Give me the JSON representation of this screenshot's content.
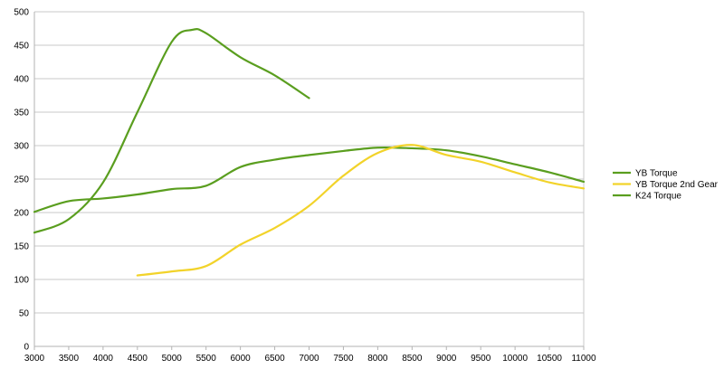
{
  "chart_data": {
    "type": "line",
    "title": "",
    "xlabel": "",
    "ylabel": "",
    "xlim": [
      3000,
      11000
    ],
    "ylim": [
      0,
      500
    ],
    "x_ticks": [
      3000,
      3500,
      4000,
      4500,
      5000,
      5500,
      6000,
      6500,
      7000,
      7500,
      8000,
      8500,
      9000,
      9500,
      10000,
      10500,
      11000
    ],
    "y_ticks": [
      0,
      50,
      100,
      150,
      200,
      250,
      300,
      350,
      400,
      450,
      500
    ],
    "grid": "horizontal",
    "legend_position": "right",
    "series": [
      {
        "name": "YB Torque",
        "color": "#5a9e1f",
        "x": [
          3000,
          3500,
          4000,
          4500,
          5000,
          5500,
          6000,
          6500,
          7000,
          7500,
          8000,
          8500,
          9000,
          9500,
          10000,
          10500,
          11000
        ],
        "y": [
          201,
          217,
          221,
          227,
          235,
          240,
          268,
          279,
          286,
          292,
          297,
          296,
          293,
          284,
          272,
          260,
          246
        ]
      },
      {
        "name": "YB Torque 2nd Gear",
        "color": "#f2d32a",
        "x": [
          4500,
          5000,
          5500,
          6000,
          6500,
          7000,
          7500,
          8000,
          8500,
          9000,
          9500,
          10000,
          10500,
          11000
        ],
        "y": [
          106,
          112,
          120,
          152,
          177,
          210,
          255,
          289,
          301,
          286,
          276,
          260,
          245,
          236
        ]
      },
      {
        "name": "K24 Torque",
        "color": "#5a9e1f",
        "x": [
          3000,
          3500,
          4000,
          4500,
          5000,
          5300,
          5500,
          6000,
          6500,
          7000
        ],
        "y": [
          170,
          190,
          245,
          350,
          455,
          473,
          468,
          432,
          405,
          371
        ]
      }
    ]
  }
}
